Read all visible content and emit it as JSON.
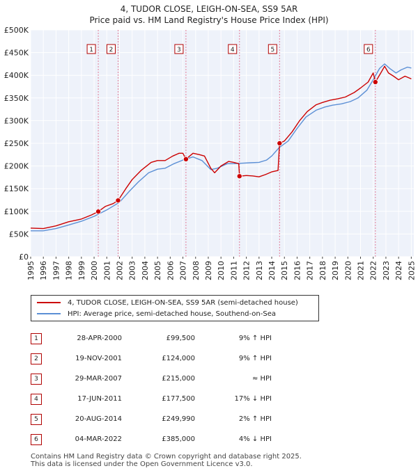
{
  "title": "4, TUDOR CLOSE, LEIGH-ON-SEA, SS9 5AR",
  "subtitle": "Price paid vs. HM Land Registry's House Price Index (HPI)",
  "chart_data": {
    "type": "line",
    "title": "4, TUDOR CLOSE, LEIGH-ON-SEA, SS9 5AR",
    "subtitle": "Price paid vs. HM Land Registry's House Price Index (HPI)",
    "xlabel": "",
    "ylabel": "",
    "xlim": [
      1995,
      2025.2
    ],
    "ylim": [
      0,
      500000
    ],
    "x_ticks": [
      "1995",
      "1996",
      "1997",
      "1998",
      "1999",
      "2000",
      "2001",
      "2002",
      "2003",
      "2004",
      "2005",
      "2006",
      "2007",
      "2008",
      "2009",
      "2010",
      "2011",
      "2012",
      "2013",
      "2014",
      "2015",
      "2016",
      "2017",
      "2018",
      "2019",
      "2020",
      "2021",
      "2022",
      "2023",
      "2024",
      "2025"
    ],
    "y_ticks": [
      {
        "value": 0,
        "label": "£0"
      },
      {
        "value": 50000,
        "label": "£50K"
      },
      {
        "value": 100000,
        "label": "£100K"
      },
      {
        "value": 150000,
        "label": "£150K"
      },
      {
        "value": 200000,
        "label": "£200K"
      },
      {
        "value": 250000,
        "label": "£250K"
      },
      {
        "value": 300000,
        "label": "£300K"
      },
      {
        "value": 350000,
        "label": "£350K"
      },
      {
        "value": 400000,
        "label": "£400K"
      },
      {
        "value": 450000,
        "label": "£450K"
      },
      {
        "value": 500000,
        "label": "£500K"
      }
    ],
    "grid": true,
    "legend_position": "below",
    "series": [
      {
        "name": "4, TUDOR CLOSE, LEIGH-ON-SEA, SS9 5AR (semi-detached house)",
        "color": "#cc0000",
        "points": [
          [
            1995.0,
            63000
          ],
          [
            1996.0,
            62000
          ],
          [
            1997.0,
            68000
          ],
          [
            1998.0,
            77000
          ],
          [
            1999.0,
            83000
          ],
          [
            1999.8,
            92000
          ],
          [
            2000.33,
            99500
          ],
          [
            2000.9,
            111000
          ],
          [
            2001.5,
            117000
          ],
          [
            2001.89,
            124000
          ],
          [
            2002.5,
            150000
          ],
          [
            2003.0,
            170000
          ],
          [
            2003.7,
            190000
          ],
          [
            2004.5,
            208000
          ],
          [
            2005.0,
            212000
          ],
          [
            2005.6,
            212000
          ],
          [
            2006.2,
            222000
          ],
          [
            2006.7,
            228000
          ],
          [
            2007.0,
            228000
          ],
          [
            2007.24,
            215000
          ],
          [
            2007.8,
            228000
          ],
          [
            2008.3,
            225000
          ],
          [
            2008.7,
            222000
          ],
          [
            2009.2,
            195000
          ],
          [
            2009.5,
            185000
          ],
          [
            2010.0,
            200000
          ],
          [
            2010.6,
            210000
          ],
          [
            2011.0,
            208000
          ],
          [
            2011.4,
            205000
          ],
          [
            2011.46,
            177500
          ],
          [
            2012.0,
            179000
          ],
          [
            2012.5,
            178000
          ],
          [
            2013.0,
            176000
          ],
          [
            2013.5,
            181000
          ],
          [
            2014.0,
            187000
          ],
          [
            2014.5,
            190000
          ],
          [
            2014.62,
            249990
          ],
          [
            2015.0,
            255000
          ],
          [
            2015.6,
            275000
          ],
          [
            2016.2,
            300000
          ],
          [
            2016.8,
            320000
          ],
          [
            2017.5,
            335000
          ],
          [
            2018.0,
            340000
          ],
          [
            2018.6,
            345000
          ],
          [
            2019.2,
            348000
          ],
          [
            2019.8,
            352000
          ],
          [
            2020.5,
            362000
          ],
          [
            2021.0,
            372000
          ],
          [
            2021.6,
            385000
          ],
          [
            2022.0,
            405000
          ],
          [
            2022.17,
            385000
          ],
          [
            2022.6,
            405000
          ],
          [
            2022.9,
            420000
          ],
          [
            2023.2,
            405000
          ],
          [
            2023.6,
            398000
          ],
          [
            2024.0,
            390000
          ],
          [
            2024.5,
            398000
          ],
          [
            2025.0,
            392000
          ]
        ]
      },
      {
        "name": "HPI: Average price, semi-detached house, Southend-on-Sea",
        "color": "#5b8fd5",
        "points": [
          [
            1995.0,
            57000
          ],
          [
            1996.0,
            57000
          ],
          [
            1997.0,
            62000
          ],
          [
            1998.0,
            70000
          ],
          [
            1999.0,
            78000
          ],
          [
            2000.0,
            89000
          ],
          [
            2001.0,
            103000
          ],
          [
            2002.0,
            120000
          ],
          [
            2002.8,
            145000
          ],
          [
            2003.5,
            165000
          ],
          [
            2004.3,
            185000
          ],
          [
            2005.0,
            193000
          ],
          [
            2005.6,
            195000
          ],
          [
            2006.3,
            205000
          ],
          [
            2007.0,
            213000
          ],
          [
            2007.8,
            220000
          ],
          [
            2008.5,
            212000
          ],
          [
            2009.2,
            192000
          ],
          [
            2009.7,
            195000
          ],
          [
            2010.5,
            205000
          ],
          [
            2011.0,
            205000
          ],
          [
            2011.6,
            206000
          ],
          [
            2012.3,
            207000
          ],
          [
            2013.0,
            208000
          ],
          [
            2013.6,
            213000
          ],
          [
            2014.0,
            222000
          ],
          [
            2014.6,
            241000
          ],
          [
            2015.3,
            255000
          ],
          [
            2016.0,
            283000
          ],
          [
            2016.7,
            308000
          ],
          [
            2017.5,
            323000
          ],
          [
            2018.2,
            330000
          ],
          [
            2018.8,
            334000
          ],
          [
            2019.5,
            337000
          ],
          [
            2020.2,
            342000
          ],
          [
            2020.8,
            350000
          ],
          [
            2021.5,
            367000
          ],
          [
            2022.0,
            390000
          ],
          [
            2022.5,
            415000
          ],
          [
            2022.9,
            425000
          ],
          [
            2023.3,
            415000
          ],
          [
            2023.8,
            405000
          ],
          [
            2024.2,
            412000
          ],
          [
            2024.7,
            418000
          ],
          [
            2025.0,
            416000
          ]
        ]
      }
    ],
    "sales": [
      {
        "num": "1",
        "x": 2000.33,
        "price": 99500,
        "date": "28-APR-2000",
        "price_label": "£99,500",
        "hpi": "9% ↑ HPI"
      },
      {
        "num": "2",
        "x": 2001.89,
        "price": 124000,
        "date": "19-NOV-2001",
        "price_label": "£124,000",
        "hpi": "9% ↑ HPI"
      },
      {
        "num": "3",
        "x": 2007.24,
        "price": 215000,
        "date": "29-MAR-2007",
        "price_label": "£215,000",
        "hpi": "≈ HPI"
      },
      {
        "num": "4",
        "x": 2011.46,
        "price": 177500,
        "date": "17-JUN-2011",
        "price_label": "£177,500",
        "hpi": "17% ↓ HPI"
      },
      {
        "num": "5",
        "x": 2014.62,
        "price": 249990,
        "date": "20-AUG-2014",
        "price_label": "£249,990",
        "hpi": "2% ↑ HPI"
      },
      {
        "num": "6",
        "x": 2022.17,
        "price": 385000,
        "date": "04-MAR-2022",
        "price_label": "£385,000",
        "hpi": "4% ↓ HPI"
      }
    ]
  },
  "legend": {
    "property": "4, TUDOR CLOSE, LEIGH-ON-SEA, SS9 5AR (semi-detached house)",
    "hpi": "HPI: Average price, semi-detached house, Southend-on-Sea"
  },
  "footer": {
    "line1": "Contains HM Land Registry data © Crown copyright and database right 2025.",
    "line2": "This data is licensed under the Open Government Licence v3.0."
  },
  "colors": {
    "property": "#cc0000",
    "hpi": "#5b8fd5",
    "plot_bg": "#eef2fa",
    "grid": "#ffffff",
    "marker_dash": "#e06080"
  }
}
